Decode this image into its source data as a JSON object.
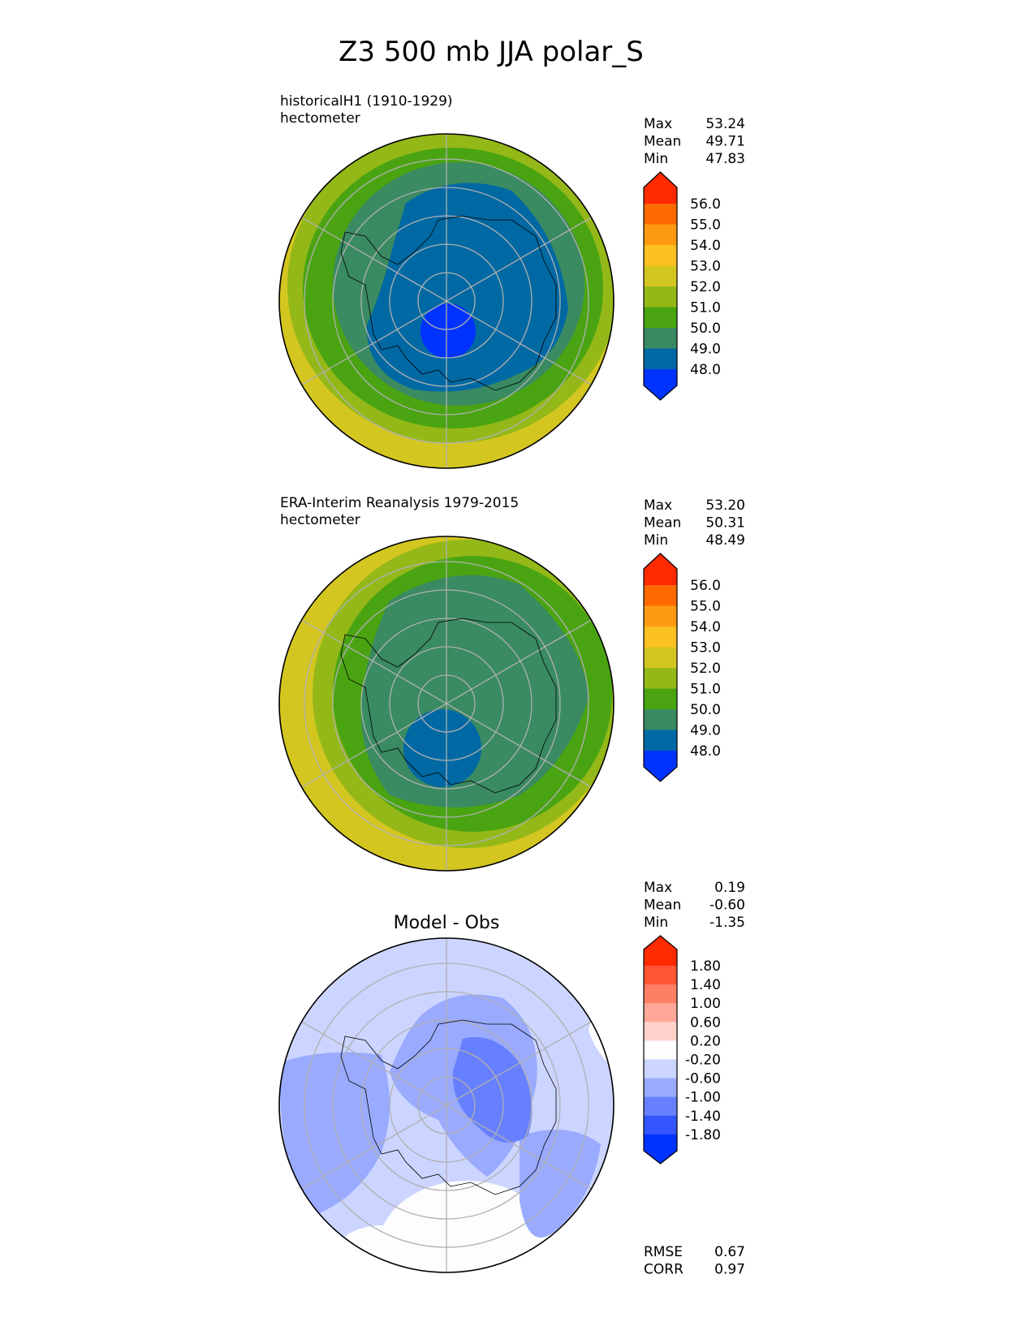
{
  "chart_data": {
    "type": "heatmap",
    "title": "Z3 500 mb JJA polar_S",
    "panels": [
      {
        "title_line1": "historicalH1 (1910-1929)",
        "title_line2": "hectometer",
        "stats": [
          {
            "label": "Max",
            "value": "53.24"
          },
          {
            "label": "Mean",
            "value": "49.71"
          },
          {
            "label": "Min",
            "value": "47.83"
          }
        ],
        "colorbar": {
          "levels": [
            "56.0",
            "55.0",
            "54.0",
            "53.0",
            "52.0",
            "51.0",
            "50.0",
            "49.0",
            "48.0"
          ],
          "colors": [
            "#ff2a00",
            "#ff6a00",
            "#fd9a12",
            "#fcc020",
            "#d4c620",
            "#94b818",
            "#4aa412",
            "#3a8a62",
            "#0069a4",
            "#0033ff"
          ]
        }
      },
      {
        "title_line1": "ERA-Interim Reanalysis 1979-2015",
        "title_line2": "hectometer",
        "stats": [
          {
            "label": "Max",
            "value": "53.20"
          },
          {
            "label": "Mean",
            "value": "50.31"
          },
          {
            "label": "Min",
            "value": "48.49"
          }
        ],
        "colorbar": {
          "levels": [
            "56.0",
            "55.0",
            "54.0",
            "53.0",
            "52.0",
            "51.0",
            "50.0",
            "49.0",
            "48.0"
          ],
          "colors": [
            "#ff2a00",
            "#ff6a00",
            "#fd9a12",
            "#fcc020",
            "#d4c620",
            "#94b818",
            "#4aa412",
            "#3a8a62",
            "#0069a4",
            "#0033ff"
          ]
        }
      },
      {
        "title_center": "Model - Obs",
        "stats": [
          {
            "label": "Max",
            "value": "0.19"
          },
          {
            "label": "Mean",
            "value": "-0.60"
          },
          {
            "label": "Min",
            "value": "-1.35"
          }
        ],
        "colorbar": {
          "levels": [
            "1.80",
            "1.40",
            "1.00",
            "0.60",
            "0.20",
            "-0.20",
            "-0.60",
            "-1.00",
            "-1.40",
            "-1.80"
          ],
          "colors": [
            "#ff2a00",
            "#ff5533",
            "#ff7f66",
            "#ffa899",
            "#ffd3cc",
            "#fdfdfd",
            "#ccd5ff",
            "#99aaff",
            "#6680ff",
            "#3355ff",
            "#0033ff"
          ]
        },
        "metrics": [
          {
            "label": "RMSE",
            "value": "0.67"
          },
          {
            "label": "CORR",
            "value": "0.97"
          }
        ]
      }
    ]
  }
}
